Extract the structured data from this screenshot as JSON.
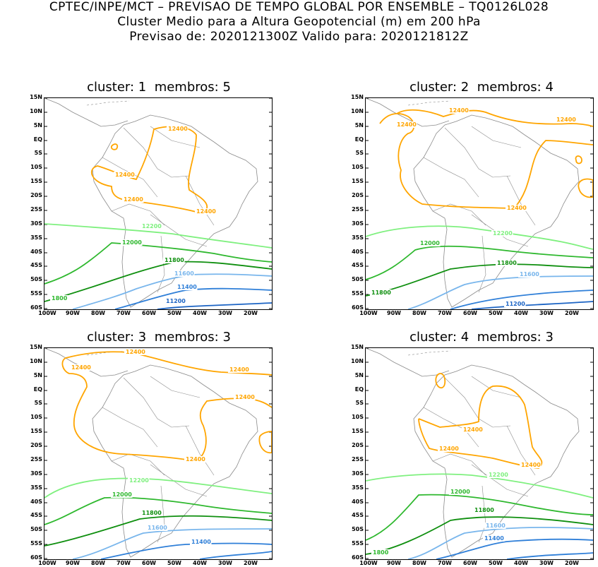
{
  "header": {
    "line1": "CPTEC/INPE/MCT – PREVISAO DE TEMPO GLOBAL POR ENSEMBLE – TQ0126L028",
    "line2": "Cluster Medio para a Altura Geopotencial (m) em 200 hPa",
    "line3": "Previsao de: 2020121300Z    Valido para: 2020121812Z"
  },
  "axes": {
    "lat_labels": [
      "15N",
      "10N",
      "5N",
      "EQ",
      "5S",
      "10S",
      "15S",
      "20S",
      "25S",
      "30S",
      "35S",
      "40S",
      "45S",
      "50S",
      "55S",
      "60S"
    ],
    "lon_labels": [
      "100W",
      "90W",
      "80W",
      "70W",
      "60W",
      "50W",
      "40W",
      "30W",
      "20W"
    ]
  },
  "colors": {
    "c12400": "#ffa500",
    "c12200": "#7ff07f",
    "c12000": "#2eb82e",
    "c11800": "#0f8f0f",
    "c11600": "#79b6ec",
    "c11400": "#2f7fd8",
    "c11200": "#1c64c4",
    "map": "#8a8a8a"
  },
  "panels": [
    {
      "cluster_label": "cluster:",
      "cluster_num": "1",
      "membros_label": "membros:",
      "membros_num": "5",
      "contour_labels": [
        "12400",
        "12400",
        "12400",
        "12400",
        "12200",
        "12000",
        "11800",
        "11600",
        "11400",
        "11200",
        "1800"
      ]
    },
    {
      "cluster_label": "cluster:",
      "cluster_num": "2",
      "membros_label": "membros:",
      "membros_num": "4",
      "contour_labels": [
        "12400",
        "12400",
        "12400",
        "12400",
        "12200",
        "12000",
        "11800",
        "11600",
        "11800",
        "11200"
      ]
    },
    {
      "cluster_label": "cluster:",
      "cluster_num": "3",
      "membros_label": "membros:",
      "membros_num": "3",
      "contour_labels": [
        "12400",
        "12400",
        "12400",
        "12400",
        "12400",
        "12200",
        "12000",
        "11800",
        "11600",
        "11400"
      ]
    },
    {
      "cluster_label": "cluster:",
      "cluster_num": "4",
      "membros_label": "membros:",
      "membros_num": "3",
      "contour_labels": [
        "12400",
        "12400",
        "12400",
        "12200",
        "12000",
        "11800",
        "11600",
        "11400",
        "1800"
      ]
    }
  ]
}
